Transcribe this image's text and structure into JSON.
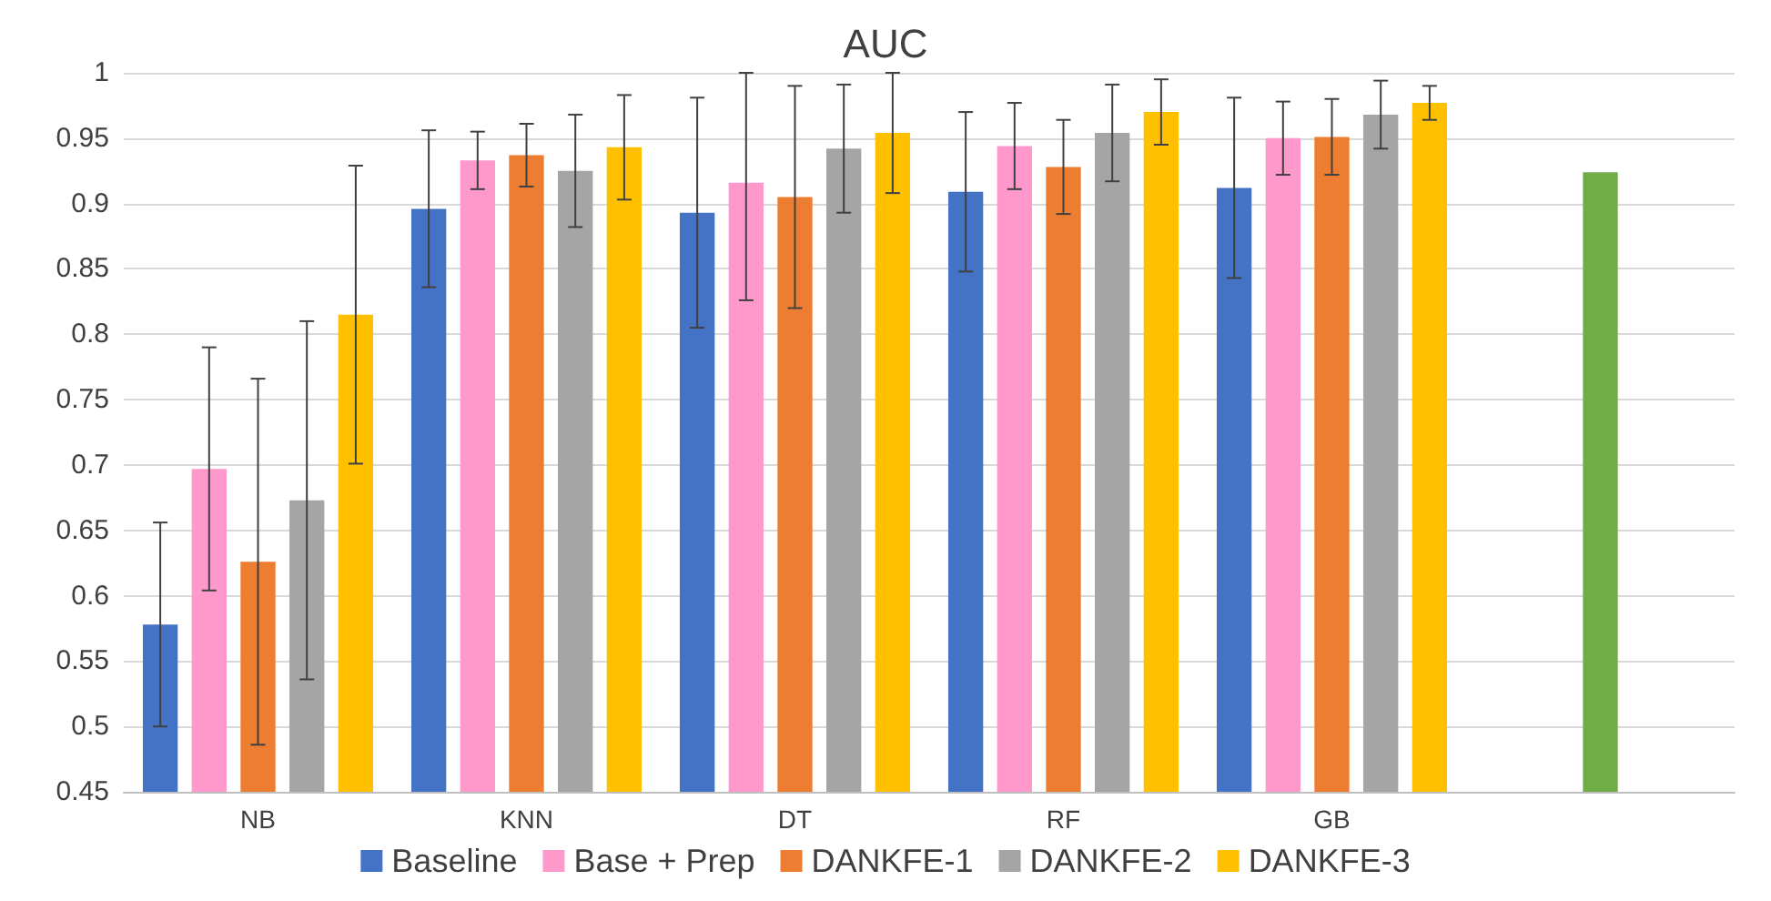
{
  "chart_data": {
    "type": "bar",
    "title": "AUC",
    "categories": [
      "NB",
      "KNN",
      "DT",
      "RF",
      "GB",
      null
    ],
    "series": [
      {
        "name": "Baseline",
        "color": "#4472c4",
        "values": [
          0.578,
          0.896,
          0.893,
          0.909,
          0.912,
          null
        ],
        "errors": [
          0.078,
          0.06,
          0.088,
          0.061,
          0.069,
          null
        ]
      },
      {
        "name": "Base + Prep",
        "color": "#ff99cc",
        "values": [
          0.697,
          0.933,
          0.916,
          0.944,
          0.95,
          null
        ],
        "errors": [
          0.093,
          0.022,
          [
            0.826,
            1
          ],
          0.033,
          0.028,
          null
        ]
      },
      {
        "name": "DANKFE-1",
        "color": "#ed7d31",
        "values": [
          0.626,
          0.937,
          0.905,
          0.928,
          0.951,
          null
        ],
        "errors": [
          0.14,
          0.024,
          0.085,
          0.036,
          0.029,
          null
        ]
      },
      {
        "name": "DANKFE-2",
        "color": "#a5a5a5",
        "values": [
          0.673,
          0.925,
          0.942,
          0.954,
          0.968,
          null
        ],
        "errors": [
          0.137,
          0.043,
          0.049,
          0.037,
          0.026,
          null
        ]
      },
      {
        "name": "DANKFE-3",
        "color": "#ffc000",
        "values": [
          0.815,
          0.943,
          0.954,
          0.97,
          0.977,
          null
        ],
        "errors": [
          0.114,
          0.04,
          0.046,
          0.025,
          0.013,
          null
        ]
      },
      {
        "color": "#70ad47",
        "values": [
          null,
          null,
          null,
          null,
          null,
          0.924
        ]
      }
    ],
    "ylim": [
      0.45,
      1
    ],
    "yticks": [
      0.45,
      0.5,
      0.55,
      0.6,
      0.65,
      0.7,
      0.75,
      0.8,
      0.85,
      0.9,
      0.95,
      1
    ],
    "grid": "y",
    "legend": "bottom"
  }
}
